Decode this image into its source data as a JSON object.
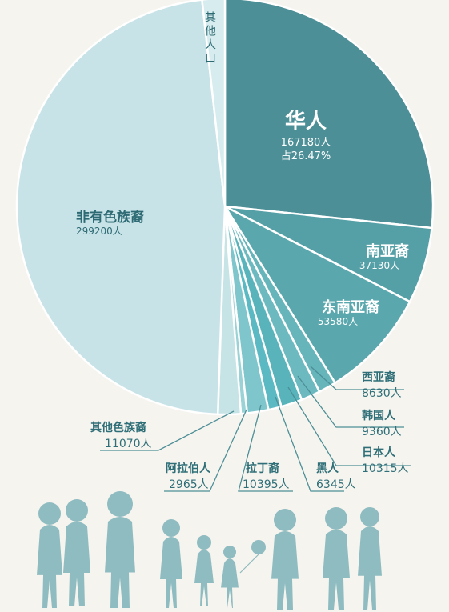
{
  "chart_data": {
    "type": "pie",
    "total_unit": "人",
    "slices": [
      {
        "label": "华人",
        "value": 167180,
        "value_text": "167180人",
        "share_text": "占26.47%",
        "color": "#4d8f97"
      },
      {
        "label": "南亚裔",
        "value": 37130,
        "value_text": "37130人",
        "color": "#55a0a7"
      },
      {
        "label": "东南亚裔",
        "value": 53580,
        "value_text": "53580人",
        "color": "#5aa8ae"
      },
      {
        "label": "西亚裔",
        "value": 8630,
        "value_text": "8630人",
        "color": "#66b5bb"
      },
      {
        "label": "韩国人",
        "value": 9360,
        "value_text": "9360人",
        "color": "#6cbac0"
      },
      {
        "label": "日本人",
        "value": 10315,
        "value_text": "10315人",
        "color": "#58b3bb"
      },
      {
        "label": "黑人",
        "value": 6345,
        "value_text": "6345人",
        "color": "#5ab9c2"
      },
      {
        "label": "拉丁裔",
        "value": 10395,
        "value_text": "10395人",
        "color": "#7ec6cc"
      },
      {
        "label": "阿拉伯人",
        "value": 2965,
        "value_text": "2965人",
        "color": "#9ad2d6"
      },
      {
        "label": "其他色族裔",
        "value": 11070,
        "value_text": "11070人",
        "color": "#c6e3e5"
      },
      {
        "label": "非有色族裔",
        "value": 299200,
        "value_text": "299200人",
        "color": "#c8e3e8"
      },
      {
        "label": "其他人口",
        "value": 11000,
        "color": "#d6ecee"
      }
    ]
  },
  "colors": {
    "background": "#f6f4ef",
    "inner_text": "#ffffff",
    "outer_text": "#2f6f78",
    "dark_text": "#2d6a73",
    "silhouette": "#8fbcc1"
  }
}
